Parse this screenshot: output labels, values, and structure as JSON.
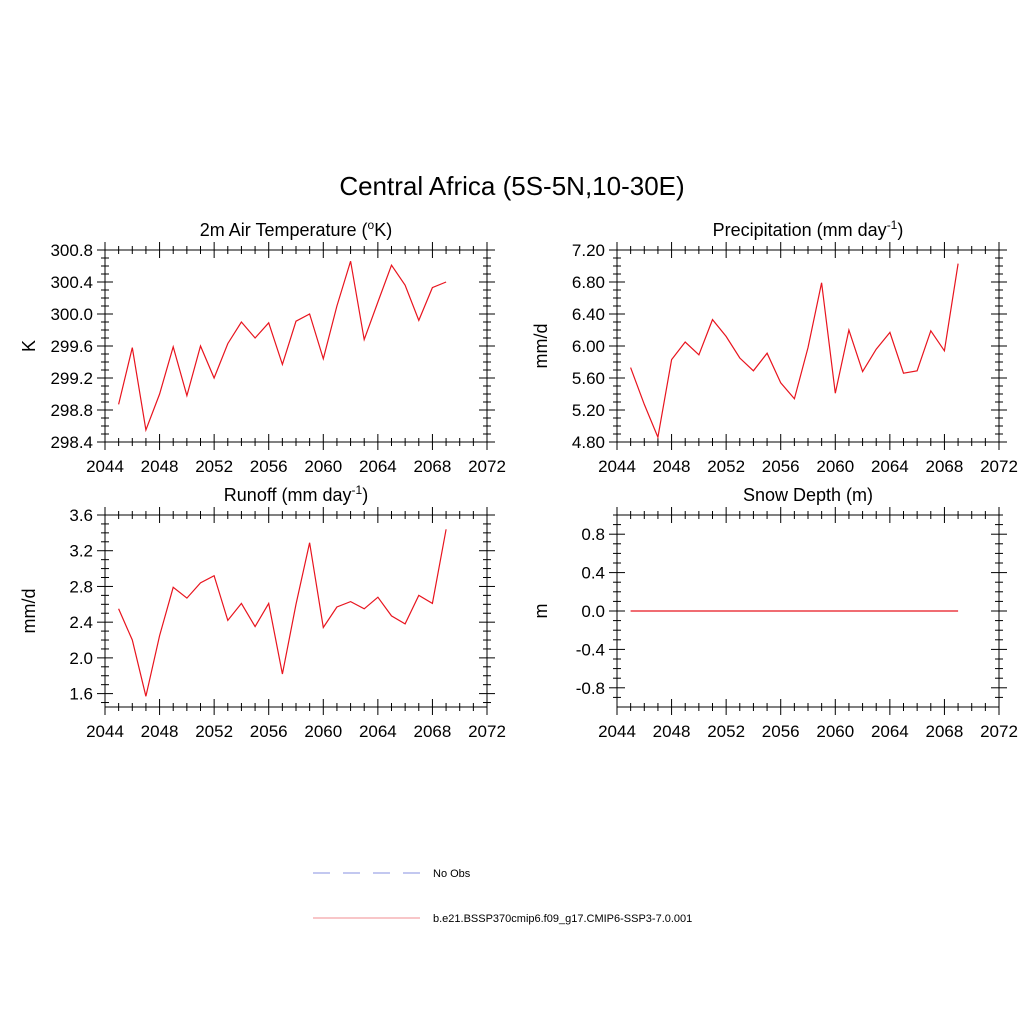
{
  "figure": {
    "title": "Central Africa (5S-5N,10-30E)"
  },
  "colors": {
    "model_line": "#e8141e",
    "model_legend": "#f4a3a6",
    "obs_legend": "#9fa6e8",
    "axis": "#000000"
  },
  "legend": [
    {
      "label": "No Obs",
      "style": "dashed",
      "color": "#9fa6e8"
    },
    {
      "label": "b.e21.BSSP370cmip6.f09_g17.CMIP6-SSP3-7.0.001",
      "style": "solid",
      "color": "#f4a3a6"
    }
  ],
  "chart_data": [
    {
      "type": "line",
      "title_main": "2m Air Temperature (",
      "title_sup": "o",
      "title_tail": "K)",
      "ylabel": "K",
      "xlim": [
        2044,
        2072
      ],
      "ylim": [
        298.4,
        300.8
      ],
      "xticks": [
        2044,
        2048,
        2052,
        2056,
        2060,
        2064,
        2068,
        2072
      ],
      "xtick_labels": [
        "2044",
        "2048",
        "2052",
        "2056",
        "2060",
        "2064",
        "2068",
        "2072"
      ],
      "yticks": [
        298.4,
        298.8,
        299.2,
        299.6,
        300.0,
        300.4,
        300.8
      ],
      "ytick_labels": [
        "298.4",
        "298.8",
        "299.2",
        "299.6",
        "300.0",
        "300.4",
        "300.8"
      ],
      "x": [
        2045,
        2046,
        2047,
        2048,
        2049,
        2050,
        2051,
        2052,
        2053,
        2054,
        2055,
        2056,
        2057,
        2058,
        2059,
        2060,
        2061,
        2062,
        2063,
        2064,
        2065,
        2066,
        2067,
        2068,
        2069
      ],
      "y": [
        298.87,
        299.58,
        298.55,
        299.0,
        299.59,
        298.98,
        299.6,
        299.2,
        299.63,
        299.9,
        299.7,
        299.89,
        299.37,
        299.91,
        300.0,
        299.44,
        300.1,
        300.66,
        299.68,
        300.15,
        300.61,
        300.36,
        299.92,
        300.33,
        300.4
      ]
    },
    {
      "type": "line",
      "title_main": "Precipitation (mm day",
      "title_sup": "-1",
      "title_tail": ")",
      "ylabel": "mm/d",
      "xlim": [
        2044,
        2072
      ],
      "ylim": [
        4.8,
        7.2
      ],
      "xticks": [
        2044,
        2048,
        2052,
        2056,
        2060,
        2064,
        2068,
        2072
      ],
      "xtick_labels": [
        "2044",
        "2048",
        "2052",
        "2056",
        "2060",
        "2064",
        "2068",
        "2072"
      ],
      "yticks": [
        4.8,
        5.2,
        5.6,
        6.0,
        6.4,
        6.8,
        7.2
      ],
      "ytick_labels": [
        "4.80",
        "5.20",
        "5.60",
        "6.00",
        "6.40",
        "6.80",
        "7.20"
      ],
      "x": [
        2045,
        2046,
        2047,
        2048,
        2049,
        2050,
        2051,
        2052,
        2053,
        2054,
        2055,
        2056,
        2057,
        2058,
        2059,
        2060,
        2061,
        2062,
        2063,
        2064,
        2065,
        2066,
        2067,
        2068,
        2069
      ],
      "y": [
        5.73,
        5.27,
        4.86,
        5.83,
        6.05,
        5.89,
        6.33,
        6.12,
        5.85,
        5.69,
        5.91,
        5.54,
        5.34,
        5.98,
        6.79,
        5.41,
        6.2,
        5.68,
        5.96,
        6.17,
        5.66,
        5.69,
        6.19,
        5.94,
        7.03
      ]
    },
    {
      "type": "line",
      "title_main": "Runoff (mm day",
      "title_sup": "-1",
      "title_tail": ")",
      "ylabel": "mm/d",
      "xlim": [
        2044,
        2072
      ],
      "ylim": [
        1.45,
        3.6
      ],
      "xticks": [
        2044,
        2048,
        2052,
        2056,
        2060,
        2064,
        2068,
        2072
      ],
      "xtick_labels": [
        "2044",
        "2048",
        "2052",
        "2056",
        "2060",
        "2064",
        "2068",
        "2072"
      ],
      "yticks": [
        1.6,
        2.0,
        2.4,
        2.8,
        3.2,
        3.6
      ],
      "ytick_labels": [
        "1.6",
        "2.0",
        "2.4",
        "2.8",
        "3.2",
        "3.6"
      ],
      "x": [
        2045,
        2046,
        2047,
        2048,
        2049,
        2050,
        2051,
        2052,
        2053,
        2054,
        2055,
        2056,
        2057,
        2058,
        2059,
        2060,
        2061,
        2062,
        2063,
        2064,
        2065,
        2066,
        2067,
        2068,
        2069
      ],
      "y": [
        2.55,
        2.2,
        1.57,
        2.25,
        2.79,
        2.67,
        2.84,
        2.92,
        2.42,
        2.61,
        2.35,
        2.61,
        1.82,
        2.6,
        3.29,
        2.34,
        2.57,
        2.63,
        2.55,
        2.68,
        2.47,
        2.38,
        2.7,
        2.61,
        3.44
      ]
    },
    {
      "type": "line",
      "title_main": "Snow Depth (m)",
      "title_sup": "",
      "title_tail": "",
      "ylabel": "m",
      "xlim": [
        2044,
        2072
      ],
      "ylim": [
        -1.0,
        1.0
      ],
      "xticks": [
        2044,
        2048,
        2052,
        2056,
        2060,
        2064,
        2068,
        2072
      ],
      "xtick_labels": [
        "2044",
        "2048",
        "2052",
        "2056",
        "2060",
        "2064",
        "2068",
        "2072"
      ],
      "yticks": [
        -0.8,
        -0.4,
        0.0,
        0.4,
        0.8
      ],
      "ytick_labels": [
        "-0.8",
        "-0.4",
        "0.0",
        "0.4",
        "0.8"
      ],
      "x": [
        2045,
        2046,
        2047,
        2048,
        2049,
        2050,
        2051,
        2052,
        2053,
        2054,
        2055,
        2056,
        2057,
        2058,
        2059,
        2060,
        2061,
        2062,
        2063,
        2064,
        2065,
        2066,
        2067,
        2068,
        2069
      ],
      "y": [
        0,
        0,
        0,
        0,
        0,
        0,
        0,
        0,
        0,
        0,
        0,
        0,
        0,
        0,
        0,
        0,
        0,
        0,
        0,
        0,
        0,
        0,
        0,
        0,
        0
      ]
    }
  ]
}
